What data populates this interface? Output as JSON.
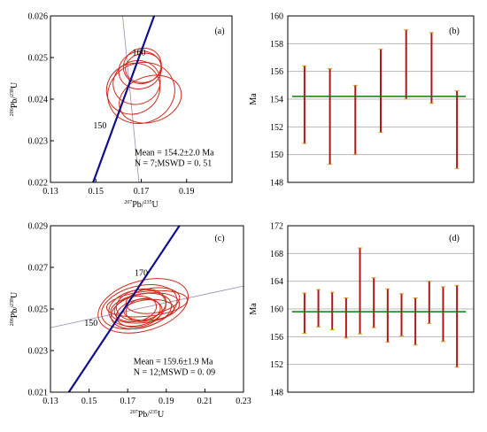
{
  "chart_data": [
    {
      "type": "scatter",
      "panel": "(a)",
      "xlabel_sup": "207",
      "xlabel_main": "Pb/",
      "xlabel_sup2": "235",
      "xlabel_end": "U",
      "ylabel_sup": "206",
      "ylabel_main": "Pb/",
      "ylabel_sup2": "238",
      "ylabel_end": "U",
      "xlim": [
        0.13,
        0.21
      ],
      "ylim": [
        0.022,
        0.026
      ],
      "xticks": [
        "0.13",
        "0.15",
        "0.17",
        "0.19"
      ],
      "yticks": [
        "0.022",
        "0.023",
        "0.024",
        "0.025",
        "0.026"
      ],
      "concordia_ages": [
        "150",
        "160"
      ],
      "annotation_mean": "Mean = 154.2±2.0 Ma",
      "annotation_n": "N = 7;MSWD = 0. 51",
      "concordia_line": [
        [
          0.1488,
          0.022
        ],
        [
          0.1757,
          0.026
        ]
      ],
      "secondary_line": [
        [
          0.1618,
          0.026
        ],
        [
          0.169,
          0.022
        ]
      ],
      "ellipses": [
        {
          "cx": 0.17,
          "cy": 0.02415,
          "rx": 0.015,
          "ry": 0.00072,
          "rot": -22
        },
        {
          "cx": 0.1665,
          "cy": 0.02425,
          "rx": 0.012,
          "ry": 0.0006,
          "rot": -28
        },
        {
          "cx": 0.168,
          "cy": 0.0244,
          "rx": 0.0105,
          "ry": 0.00052,
          "rot": -20
        },
        {
          "cx": 0.1695,
          "cy": 0.0247,
          "rx": 0.0095,
          "ry": 0.00045,
          "rot": -15
        },
        {
          "cx": 0.1705,
          "cy": 0.0248,
          "rx": 0.0085,
          "ry": 0.00042,
          "rot": -25
        },
        {
          "cx": 0.171,
          "cy": 0.02475,
          "rx": 0.008,
          "ry": 0.00035,
          "rot": -10
        },
        {
          "cx": 0.174,
          "cy": 0.024,
          "rx": 0.014,
          "ry": 0.00055,
          "rot": -18
        }
      ]
    },
    {
      "type": "bar",
      "panel": "(b)",
      "ylabel": "Ma",
      "ylim": [
        148,
        160
      ],
      "yticks": [
        "148",
        "150",
        "152",
        "154",
        "156",
        "158",
        "160"
      ],
      "mean": 154.2,
      "errorbars": [
        {
          "low": 150.8,
          "high": 156.4
        },
        {
          "low": 149.3,
          "high": 156.2
        },
        {
          "low": 150.0,
          "high": 155.0
        },
        {
          "low": 151.6,
          "high": 157.6
        },
        {
          "low": 154.0,
          "high": 159.0
        },
        {
          "low": 153.7,
          "high": 158.8
        },
        {
          "low": 149.0,
          "high": 154.6
        }
      ]
    },
    {
      "type": "scatter",
      "panel": "(c)",
      "xlabel_sup": "207",
      "xlabel_main": "Pb/",
      "xlabel_sup2": "235",
      "xlabel_end": "U",
      "ylabel_sup": "206",
      "ylabel_main": "Pb/",
      "ylabel_sup2": "238",
      "ylabel_end": "U",
      "xlim": [
        0.13,
        0.23
      ],
      "ylim": [
        0.021,
        0.029
      ],
      "xticks": [
        "0.13",
        "0.15",
        "0.17",
        "0.19",
        "0.21",
        "0.23"
      ],
      "yticks": [
        "0.021",
        "0.023",
        "0.025",
        "0.027",
        "0.029"
      ],
      "concordia_ages": [
        "150",
        "170"
      ],
      "annotation_mean": "Mean = 159.6±1.9 Ma",
      "annotation_n": "N = 12;MSWD = 0. 09",
      "concordia_line": [
        [
          0.1395,
          0.021
        ],
        [
          0.1968,
          0.029
        ]
      ],
      "secondary_line": [
        [
          0.13,
          0.0241
        ],
        [
          0.23,
          0.0261
        ]
      ],
      "ellipses": [
        {
          "cx": 0.178,
          "cy": 0.02515,
          "rx": 0.024,
          "ry": 0.0012,
          "rot": -16
        },
        {
          "cx": 0.176,
          "cy": 0.0251,
          "rx": 0.02,
          "ry": 0.001,
          "rot": -14
        },
        {
          "cx": 0.175,
          "cy": 0.02505,
          "rx": 0.015,
          "ry": 0.00085,
          "rot": -12
        },
        {
          "cx": 0.177,
          "cy": 0.0252,
          "rx": 0.013,
          "ry": 0.00075,
          "rot": -10
        },
        {
          "cx": 0.179,
          "cy": 0.02505,
          "rx": 0.018,
          "ry": 0.0007,
          "rot": -8
        },
        {
          "cx": 0.177,
          "cy": 0.0249,
          "rx": 0.016,
          "ry": 0.0008,
          "rot": -14
        },
        {
          "cx": 0.174,
          "cy": 0.025,
          "rx": 0.011,
          "ry": 0.0006,
          "rot": -10
        },
        {
          "cx": 0.18,
          "cy": 0.02525,
          "rx": 0.021,
          "ry": 0.0006,
          "rot": -6
        },
        {
          "cx": 0.176,
          "cy": 0.0248,
          "rx": 0.012,
          "ry": 0.00065,
          "rot": -12
        },
        {
          "cx": 0.178,
          "cy": 0.02495,
          "rx": 0.009,
          "ry": 0.00055,
          "rot": -10
        },
        {
          "cx": 0.181,
          "cy": 0.02495,
          "rx": 0.013,
          "ry": 0.0005,
          "rot": -4
        },
        {
          "cx": 0.183,
          "cy": 0.0254,
          "rx": 0.014,
          "ry": 0.0006,
          "rot": -8
        }
      ]
    },
    {
      "type": "bar",
      "panel": "(d)",
      "ylabel": "Ma",
      "ylim": [
        148,
        172
      ],
      "yticks": [
        "148",
        "152",
        "156",
        "160",
        "164",
        "168",
        "172"
      ],
      "mean": 159.6,
      "errorbars": [
        {
          "low": 156.5,
          "high": 162.3
        },
        {
          "low": 157.4,
          "high": 162.8
        },
        {
          "low": 157.0,
          "high": 162.4
        },
        {
          "low": 155.8,
          "high": 161.6
        },
        {
          "low": 156.4,
          "high": 168.8
        },
        {
          "low": 157.3,
          "high": 164.5
        },
        {
          "low": 155.2,
          "high": 162.9
        },
        {
          "low": 156.1,
          "high": 162.2
        },
        {
          "low": 154.8,
          "high": 161.6
        },
        {
          "low": 157.9,
          "high": 164.0
        },
        {
          "low": 155.3,
          "high": 163.2
        },
        {
          "low": 151.6,
          "high": 163.4
        }
      ]
    }
  ],
  "colors": {
    "ellipse": "#cc2b1d",
    "concordia": "#10108a",
    "secondary": "#9a8ab8",
    "errorbar": "#b01818",
    "errorbar_cap": "#c8a020",
    "mean_line": "#0f7a0f",
    "grid": "#b8b8b8"
  }
}
